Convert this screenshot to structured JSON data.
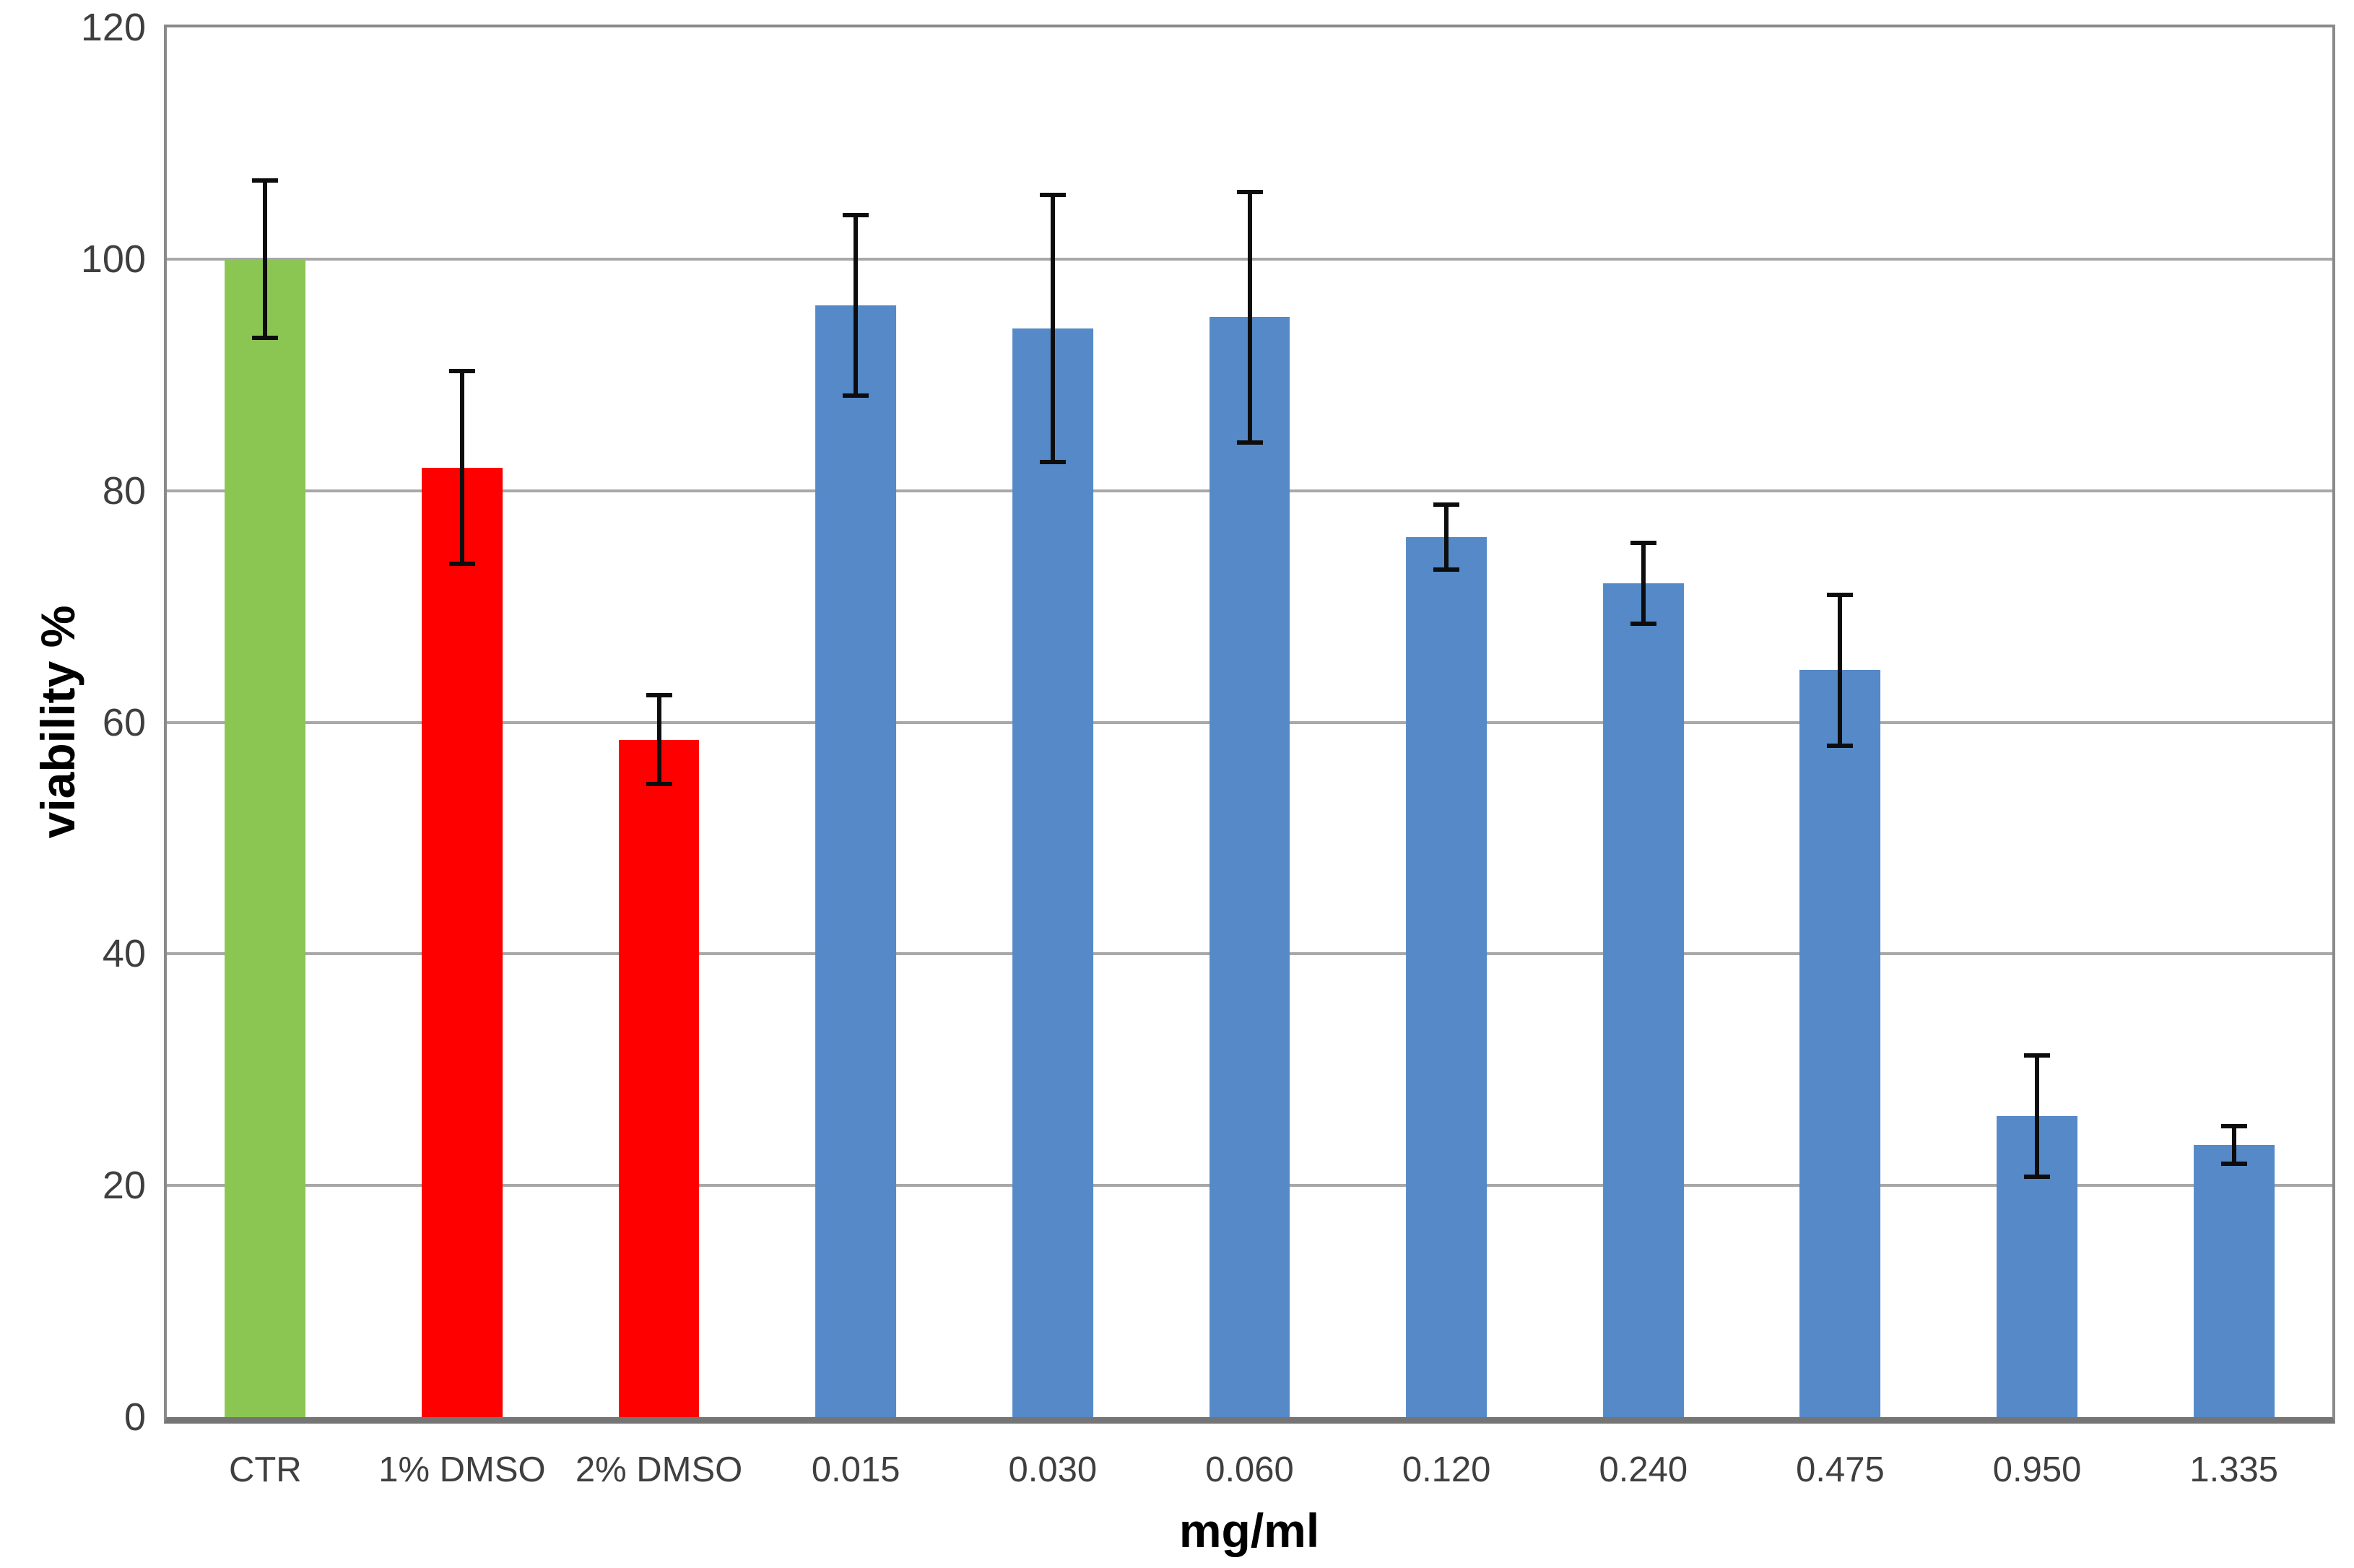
{
  "figure": {
    "background": "#ffffff"
  },
  "chart_data": {
    "type": "bar",
    "title": "",
    "xlabel": "mg/ml",
    "ylabel": "viability %",
    "ylim": [
      0,
      120
    ],
    "yticks": [
      0,
      20,
      40,
      60,
      80,
      100,
      120
    ],
    "grid": "horizontal",
    "legend": "none",
    "categories": [
      "CTR",
      "1% DMSO",
      "2% DMSO",
      "0.015",
      "0.030",
      "0.060",
      "0.120",
      "0.240",
      "0.475",
      "0.950",
      "1.335"
    ],
    "values": [
      100,
      82,
      58.5,
      96,
      94,
      95,
      76,
      72,
      64.5,
      26,
      23.5
    ],
    "errors": [
      7,
      8.5,
      4,
      8,
      11.7,
      11,
      3,
      3.7,
      6.7,
      5.4,
      1.8
    ],
    "bar_colors": [
      "#8cc652",
      "#ff0000",
      "#ff0000",
      "#5589c8",
      "#5589c8",
      "#5589c8",
      "#5589c8",
      "#5589c8",
      "#5589c8",
      "#5589c8",
      "#5589c8"
    ],
    "colors": {
      "control_green": "#8cc652",
      "dmso_red": "#ff0000",
      "treatment_blue": "#5589c8",
      "gridline": "#a8a8a8",
      "plot_border": "#8a8a8a",
      "baseline": "#757575",
      "tick_text": "#3f3f3f",
      "error_bar": "#0d0d0d",
      "title_text": "#000000"
    }
  }
}
